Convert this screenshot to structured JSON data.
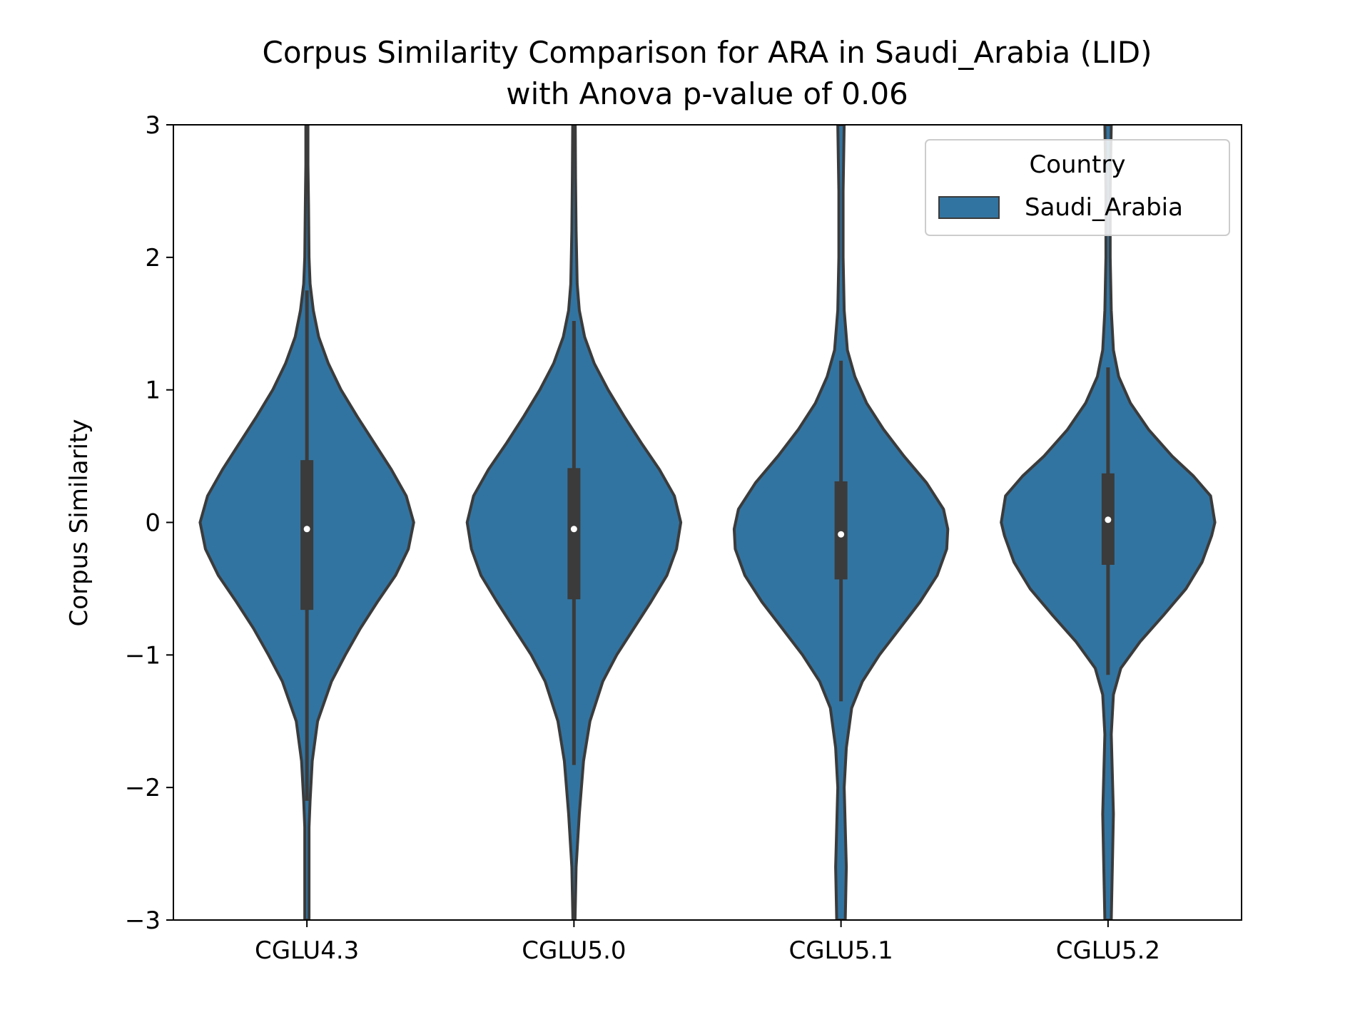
{
  "chart_data": {
    "type": "violin",
    "title": "Corpus Similarity Comparison for ARA in Saudi_Arabia (LID)",
    "subtitle": "with Anova p-value of 0.06",
    "xlabel": "",
    "ylabel": "Corpus Similarity",
    "ylim": [
      -3,
      3
    ],
    "yticks": [
      "−3",
      "−2",
      "−1",
      "0",
      "1",
      "2",
      "3"
    ],
    "ytick_values": [
      -3,
      -2,
      -1,
      0,
      1,
      2,
      3
    ],
    "categories": [
      "CGLU4.3",
      "CGLU5.0",
      "CGLU5.1",
      "CGLU5.2"
    ],
    "legend": {
      "title": "Country",
      "entries": [
        "Saudi_Arabia"
      ],
      "position": "top-right"
    },
    "colors": {
      "fill": "#3274a1",
      "edge": "#3b3b3b",
      "median": "#ffffff",
      "axis": "#000000"
    },
    "grid": false,
    "series": [
      {
        "name": "Saudi_Arabia",
        "violins": [
          {
            "category": "CGLU4.3",
            "median": -0.05,
            "q1": -0.66,
            "q3": 0.47,
            "whisker_low": -2.1,
            "whisker_high": 1.75,
            "density": [
              [
                -3.0,
                0.02
              ],
              [
                -2.6,
                0.02
              ],
              [
                -2.3,
                0.02
              ],
              [
                -2.1,
                0.03
              ],
              [
                -1.8,
                0.05
              ],
              [
                -1.5,
                0.1
              ],
              [
                -1.2,
                0.23
              ],
              [
                -1.0,
                0.36
              ],
              [
                -0.8,
                0.5
              ],
              [
                -0.6,
                0.66
              ],
              [
                -0.4,
                0.83
              ],
              [
                -0.2,
                0.95
              ],
              [
                0.0,
                1.0
              ],
              [
                0.2,
                0.93
              ],
              [
                0.4,
                0.79
              ],
              [
                0.6,
                0.63
              ],
              [
                0.8,
                0.47
              ],
              [
                1.0,
                0.32
              ],
              [
                1.2,
                0.2
              ],
              [
                1.4,
                0.11
              ],
              [
                1.6,
                0.06
              ],
              [
                1.8,
                0.03
              ],
              [
                2.0,
                0.02
              ],
              [
                2.4,
                0.015
              ],
              [
                2.7,
                0.01
              ],
              [
                3.0,
                0.01
              ]
            ]
          },
          {
            "category": "CGLU5.0",
            "median": -0.05,
            "q1": -0.58,
            "q3": 0.41,
            "whisker_low": -1.83,
            "whisker_high": 1.52,
            "density": [
              [
                -3.0,
                0.01
              ],
              [
                -2.6,
                0.02
              ],
              [
                -2.2,
                0.05
              ],
              [
                -1.8,
                0.09
              ],
              [
                -1.5,
                0.15
              ],
              [
                -1.2,
                0.27
              ],
              [
                -1.0,
                0.4
              ],
              [
                -0.8,
                0.56
              ],
              [
                -0.6,
                0.72
              ],
              [
                -0.4,
                0.87
              ],
              [
                -0.2,
                0.96
              ],
              [
                0.0,
                1.0
              ],
              [
                0.2,
                0.94
              ],
              [
                0.4,
                0.8
              ],
              [
                0.6,
                0.63
              ],
              [
                0.8,
                0.47
              ],
              [
                1.0,
                0.32
              ],
              [
                1.2,
                0.19
              ],
              [
                1.4,
                0.1
              ],
              [
                1.6,
                0.05
              ],
              [
                1.8,
                0.03
              ],
              [
                2.2,
                0.02
              ],
              [
                2.6,
                0.015
              ],
              [
                3.0,
                0.012
              ]
            ]
          },
          {
            "category": "CGLU5.1",
            "median": -0.09,
            "q1": -0.43,
            "q3": 0.31,
            "whisker_low": -1.35,
            "whisker_high": 1.22,
            "density": [
              [
                -3.0,
                0.04
              ],
              [
                -2.6,
                0.05
              ],
              [
                -2.3,
                0.04
              ],
              [
                -2.0,
                0.03
              ],
              [
                -1.7,
                0.05
              ],
              [
                -1.4,
                0.1
              ],
              [
                -1.2,
                0.2
              ],
              [
                -1.0,
                0.36
              ],
              [
                -0.8,
                0.55
              ],
              [
                -0.6,
                0.74
              ],
              [
                -0.4,
                0.9
              ],
              [
                -0.2,
                0.99
              ],
              [
                -0.05,
                1.0
              ],
              [
                0.1,
                0.96
              ],
              [
                0.3,
                0.8
              ],
              [
                0.5,
                0.59
              ],
              [
                0.7,
                0.4
              ],
              [
                0.9,
                0.24
              ],
              [
                1.1,
                0.13
              ],
              [
                1.3,
                0.06
              ],
              [
                1.6,
                0.03
              ],
              [
                2.0,
                0.02
              ],
              [
                2.5,
                0.02
              ],
              [
                3.0,
                0.03
              ]
            ]
          },
          {
            "category": "CGLU5.2",
            "median": 0.02,
            "q1": -0.32,
            "q3": 0.37,
            "whisker_low": -1.15,
            "whisker_high": 1.17,
            "density": [
              [
                -3.0,
                0.03
              ],
              [
                -2.6,
                0.04
              ],
              [
                -2.2,
                0.05
              ],
              [
                -1.9,
                0.04
              ],
              [
                -1.6,
                0.03
              ],
              [
                -1.3,
                0.05
              ],
              [
                -1.1,
                0.12
              ],
              [
                -0.9,
                0.3
              ],
              [
                -0.7,
                0.52
              ],
              [
                -0.5,
                0.73
              ],
              [
                -0.3,
                0.88
              ],
              [
                -0.1,
                0.97
              ],
              [
                0.0,
                1.0
              ],
              [
                0.2,
                0.96
              ],
              [
                0.35,
                0.8
              ],
              [
                0.5,
                0.6
              ],
              [
                0.7,
                0.38
              ],
              [
                0.9,
                0.21
              ],
              [
                1.1,
                0.1
              ],
              [
                1.3,
                0.05
              ],
              [
                1.6,
                0.03
              ],
              [
                2.0,
                0.02
              ],
              [
                2.5,
                0.02
              ],
              [
                3.0,
                0.03
              ]
            ]
          }
        ]
      }
    ]
  }
}
